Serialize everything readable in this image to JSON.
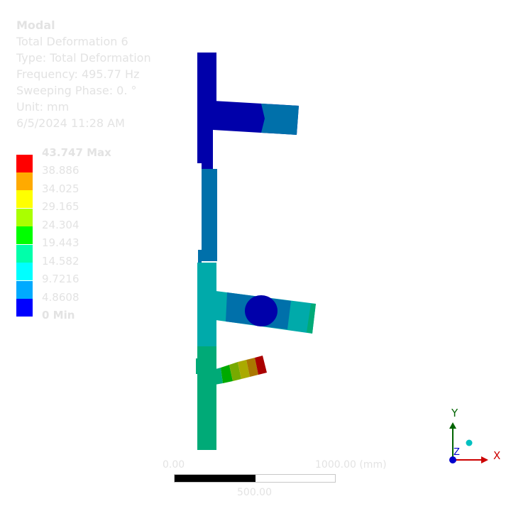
{
  "info": {
    "title": "Modal",
    "result": "Total Deformation 6",
    "type": "Type: Total Deformation",
    "frequency": "Frequency: 495.77 Hz",
    "phase": "Sweeping Phase: 0. °",
    "unit": "Unit: mm",
    "timestamp": "6/5/2024 11:28 AM"
  },
  "legend": {
    "labels": [
      "43.747 Max",
      "38.886",
      "34.025",
      "29.165",
      "24.304",
      "19.443",
      "14.582",
      "9.7216",
      "4.8608",
      "0 Min"
    ],
    "colors": [
      "#ff0000",
      "#ffaa00",
      "#ffff00",
      "#aaff00",
      "#00ff00",
      "#00ffaa",
      "#00ffff",
      "#00aaff",
      "#0000ff"
    ]
  },
  "scale": {
    "left_label": "0.00",
    "right_label": "1000.00 (mm)",
    "mid_label": "500.00"
  },
  "triad": {
    "x_label": "X",
    "y_label": "Y",
    "z_label": "Z"
  }
}
